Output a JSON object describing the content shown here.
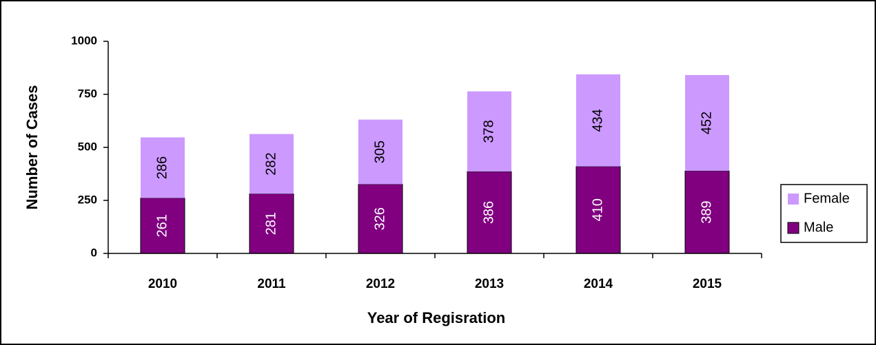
{
  "chart_data": {
    "type": "stacked_bar",
    "x_label": "Year of Regisration",
    "y_label": "Number of Cases",
    "categories": [
      "2010",
      "2011",
      "2012",
      "2013",
      "2014",
      "2015"
    ],
    "series": [
      {
        "name": "Male",
        "color": "#800080",
        "values": [
          261,
          281,
          326,
          386,
          410,
          389
        ]
      },
      {
        "name": "Female",
        "color": "#cc99ff",
        "values": [
          286,
          282,
          305,
          378,
          434,
          452
        ]
      }
    ],
    "ylim": [
      0,
      1000
    ],
    "yticks": [
      0,
      250,
      500,
      750,
      1000
    ],
    "grid": false,
    "legend": "right"
  }
}
